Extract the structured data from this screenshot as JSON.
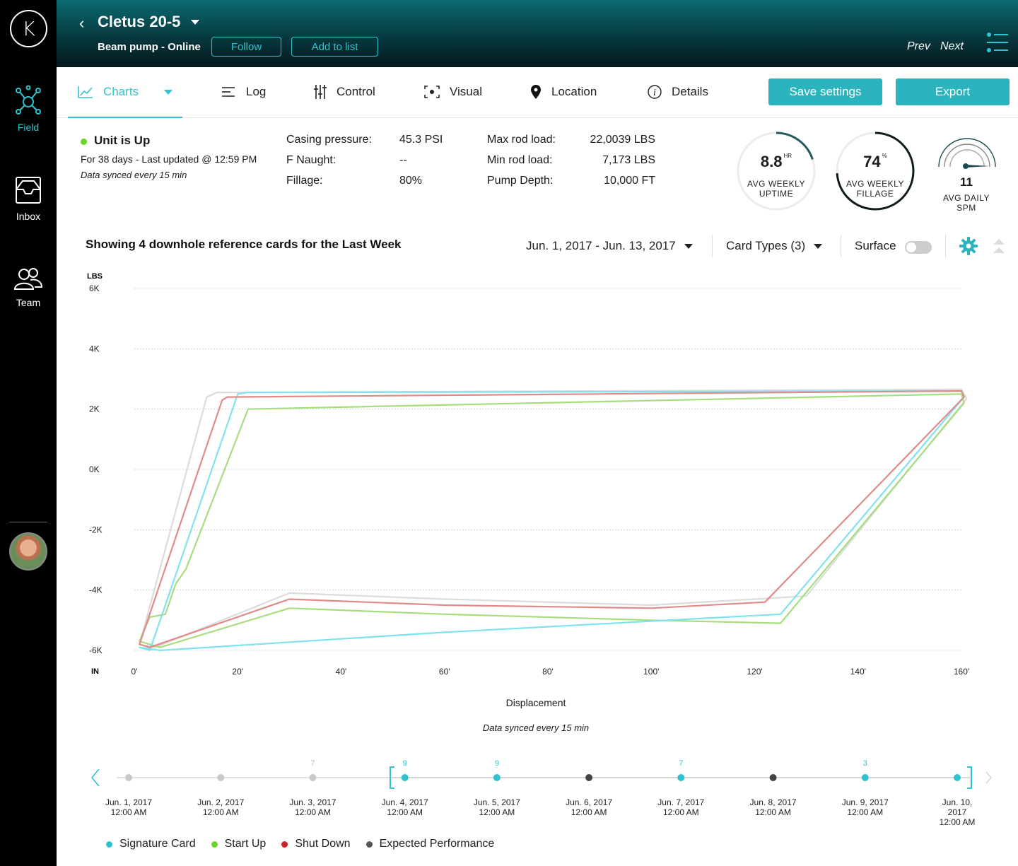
{
  "sidebar": {
    "logo": "K",
    "items": [
      {
        "label": "Field",
        "icon": "network-icon",
        "active": true
      },
      {
        "label": "Inbox",
        "icon": "inbox-icon",
        "active": false
      },
      {
        "label": "Team",
        "icon": "team-icon",
        "active": false
      }
    ]
  },
  "header": {
    "well_name": "Cletus 20-5",
    "subtitle": "Beam pump - Online",
    "follow_label": "Follow",
    "add_to_list_label": "Add to list",
    "prev_label": "Prev",
    "next_label": "Next"
  },
  "tabs": [
    {
      "label": "Charts",
      "icon": "line-chart-icon"
    },
    {
      "label": "Log",
      "icon": "list-icon"
    },
    {
      "label": "Control",
      "icon": "sliders-icon"
    },
    {
      "label": "Visual",
      "icon": "focus-icon"
    },
    {
      "label": "Location",
      "icon": "map-pin-icon"
    },
    {
      "label": "Details",
      "icon": "info-icon"
    }
  ],
  "actions": {
    "save": "Save settings",
    "export": "Export"
  },
  "status": {
    "title": "Unit is Up",
    "line1": "For 38 days - Last updated @ 12:59 PM",
    "line2": "Data synced every 15 min"
  },
  "metrics_a": [
    {
      "label": "Casing pressure:",
      "value": "45.3 PSI"
    },
    {
      "label": "F Naught:",
      "value": "--"
    },
    {
      "label": "Fillage:",
      "value": "80%"
    }
  ],
  "metrics_b": [
    {
      "label": "Max rod load:",
      "value": "22,0039 LBS"
    },
    {
      "label": "Min rod load:",
      "value": "7,173 LBS"
    },
    {
      "label": "Pump Depth:",
      "value": "10,000 FT"
    }
  ],
  "gauges": {
    "uptime": {
      "value": "8.8",
      "unit": "HR",
      "label1": "AVG WEEKLY",
      "label2": "UPTIME",
      "fraction": 0.2
    },
    "fillage": {
      "value": "74",
      "unit": "%",
      "label1": "AVG WEEKLY",
      "label2": "FILLAGE",
      "fraction": 0.74
    },
    "spm": {
      "value": "11",
      "label1": "AVG DAILY",
      "label2": "SPM"
    }
  },
  "controls": {
    "showing": "Showing 4 downhole reference cards for the Last Week",
    "date_range": "Jun. 1, 2017 - Jun. 13, 2017",
    "card_types": "Card Types (3)",
    "surface": "Surface"
  },
  "chart_data": {
    "type": "line",
    "ylabel": "LBS",
    "xlabel_unit": "IN",
    "xlabel": "Displacement",
    "y_ticks": [
      "6K",
      "4K",
      "2K",
      "0K",
      "-2K",
      "-4K",
      "-6K"
    ],
    "x_ticks": [
      "0'",
      "20'",
      "40'",
      "60'",
      "80'",
      "100'",
      "120'",
      "140'",
      "160'"
    ],
    "xlim": [
      0,
      160
    ],
    "ylim": [
      -6000,
      6000
    ],
    "grid": true,
    "note": "Data synced every 15 min",
    "series": [
      {
        "name": "Signature Card",
        "color": "#7fe3ee",
        "x": [
          1,
          3,
          20,
          22,
          160,
          160.5,
          125,
          60,
          5,
          1
        ],
        "y": [
          -5900,
          -6000,
          2500,
          2550,
          2600,
          2400,
          -4800,
          -5400,
          -6000,
          -5900
        ]
      },
      {
        "name": "Start Up",
        "color": "#a6de7e",
        "x": [
          1,
          3,
          6,
          8,
          10,
          22,
          160,
          160.5,
          125,
          100,
          60,
          30,
          5,
          1
        ],
        "y": [
          -5700,
          -4900,
          -4800,
          -3800,
          -3300,
          2000,
          2500,
          2200,
          -5100,
          -5000,
          -4800,
          -4600,
          -5900,
          -5700
        ]
      },
      {
        "name": "Shut Down",
        "color": "#e08a8a",
        "x": [
          1,
          17,
          18,
          160,
          160.5,
          122,
          100,
          60,
          30,
          3,
          1
        ],
        "y": [
          -5800,
          2300,
          2400,
          2600,
          2400,
          -4400,
          -4600,
          -4500,
          -4300,
          -5900,
          -5800
        ]
      },
      {
        "name": "Expected Performance",
        "color": "#dcdcdc",
        "x": [
          1,
          14,
          16,
          160,
          161,
          130,
          100,
          60,
          30,
          4,
          1
        ],
        "y": [
          -5800,
          2400,
          2550,
          2650,
          2350,
          -4200,
          -4500,
          -4300,
          -4100,
          -5900,
          -5800
        ]
      }
    ]
  },
  "timeline": {
    "points": [
      {
        "date": "Jun. 1, 2017",
        "time": "12:00 AM",
        "count": "",
        "type": "past"
      },
      {
        "date": "Jun. 2, 2017",
        "time": "12:00 AM",
        "count": "",
        "type": "past"
      },
      {
        "date": "Jun. 3, 2017",
        "time": "12:00 AM",
        "count": "7",
        "type": "past"
      },
      {
        "date": "Jun. 4, 2017",
        "time": "12:00 AM",
        "count": "9",
        "type": "signature"
      },
      {
        "date": "Jun. 5, 2017",
        "time": "12:00 AM",
        "count": "9",
        "type": "signature"
      },
      {
        "date": "Jun. 6, 2017",
        "time": "12:00 AM",
        "count": "",
        "type": "expected"
      },
      {
        "date": "Jun. 7, 2017",
        "time": "12:00 AM",
        "count": "7",
        "type": "signature"
      },
      {
        "date": "Jun. 8, 2017",
        "time": "12:00 AM",
        "count": "",
        "type": "expected"
      },
      {
        "date": "Jun. 9, 2017",
        "time": "12:00 AM",
        "count": "3",
        "type": "signature"
      },
      {
        "date": "Jun. 10, 2017",
        "time": "12:00 AM",
        "count": "",
        "type": "signature"
      }
    ]
  },
  "legend": [
    {
      "label": "Signature Card",
      "color": "#30c3cf"
    },
    {
      "label": "Start Up",
      "color": "#6bd32a"
    },
    {
      "label": "Shut Down",
      "color": "#d0202c"
    },
    {
      "label": "Expected Performance",
      "color": "#555555"
    }
  ]
}
